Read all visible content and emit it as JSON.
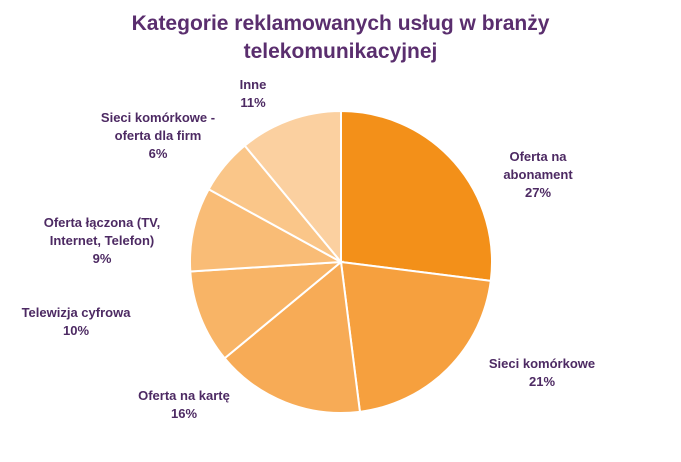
{
  "chart_data": {
    "type": "pie",
    "title": "Kategorie reklamowanych usług w branży telekomunikacyjnej",
    "title_lines": [
      "Kategorie reklamowanych usług w branży",
      "telekomunikacyjnej"
    ],
    "slices": [
      {
        "label": "Oferta na abonament",
        "label_lines": "Oferta na\nabonament",
        "value": 27,
        "display": "27%",
        "color": "#f39019"
      },
      {
        "label": "Sieci komórkowe",
        "label_lines": "Sieci komórkowe",
        "value": 21,
        "display": "21%",
        "color": "#f6a03e"
      },
      {
        "label": "Oferta na kartę",
        "label_lines": "Oferta na kartę",
        "value": 16,
        "display": "16%",
        "color": "#f7ab56"
      },
      {
        "label": "Telewizja cyfrowa",
        "label_lines": "Telewizja cyfrowa",
        "value": 10,
        "display": "10%",
        "color": "#f8b466"
      },
      {
        "label": "Oferta łączona (TV, Internet, Telefon)",
        "label_lines": "Oferta łączona (TV,\nInternet, Telefon)",
        "value": 9,
        "display": "9%",
        "color": "#f9bc76"
      },
      {
        "label": "Sieci komórkowe - oferta dla firm",
        "label_lines": "Sieci komórkowe -\noferta dla firm",
        "value": 6,
        "display": "6%",
        "color": "#fac689"
      },
      {
        "label": "Inne",
        "label_lines": "Inne",
        "value": 11,
        "display": "11%",
        "color": "#fbd0a0"
      }
    ],
    "colors": {
      "title": "#5a2e6e",
      "labels": "#4d2a63",
      "slice_border": "#ffffff"
    }
  }
}
